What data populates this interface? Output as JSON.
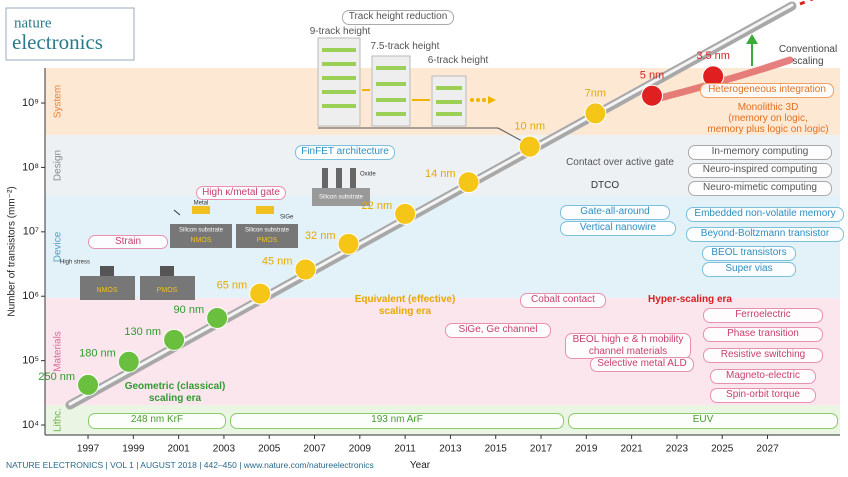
{
  "header": {
    "logo": [
      "nature",
      "electronics"
    ]
  },
  "chart_data": {
    "type": "scatter",
    "x_label": "Year",
    "y_label": "Number of transistors (mm⁻²)",
    "xlim": [
      1995.1,
      2030.2
    ],
    "xticks": [
      1997,
      1999,
      2001,
      2003,
      2005,
      2007,
      2009,
      2011,
      2013,
      2015,
      2017,
      2019,
      2021,
      2023,
      2025,
      2027
    ],
    "ylim": [
      7000,
      3500000000
    ],
    "log_y": true,
    "yticks": [
      {
        "value": 10000,
        "label": "10⁴"
      },
      {
        "value": 100000,
        "label": "10⁵"
      },
      {
        "value": 1000000,
        "label": "10⁶"
      },
      {
        "value": 10000000,
        "label": "10⁷"
      },
      {
        "value": 100000000,
        "label": "10⁸"
      },
      {
        "value": 1000000000,
        "label": "10⁹"
      }
    ],
    "series": [
      {
        "name": "Geometric (classical) scaling era",
        "color": "#6abf3e",
        "label_color": "#2f9a2f",
        "x": [
          1997,
          1998.8,
          2000.8,
          2002.7
        ],
        "values": [
          42000,
          96000,
          210000,
          460000
        ],
        "point_labels": [
          "250 nm",
          "180 nm",
          "130 nm",
          "90 nm"
        ]
      },
      {
        "name": "Equivalent (effective) scaling era",
        "color": "#f5c518",
        "label_color": "#e6a800",
        "x": [
          2004.6,
          2006.6,
          2008.5,
          2011,
          2013.8,
          2016.5,
          2019.4
        ],
        "values": [
          1100000,
          2600000,
          6500000,
          19000000,
          59000000,
          210000000,
          690000000
        ],
        "point_labels": [
          "65 nm",
          "45 nm",
          "32 nm",
          "22 nm",
          "14 nm",
          "10 nm",
          "7nm"
        ]
      },
      {
        "name": "Hyper-scaling era",
        "color": "#e02020",
        "label_color": "#d42020",
        "x": [
          2021.9,
          2024.6
        ],
        "values": [
          1300000000,
          2600000000
        ],
        "point_labels": [
          "5 nm",
          "3.5 nm"
        ]
      }
    ],
    "bands": [
      {
        "name": "System",
        "color": "#fde8d4",
        "label_color": "#e8833a"
      },
      {
        "name": "Design",
        "color": "#eef1f4",
        "label_color": "#8a8a8a"
      },
      {
        "name": "Device",
        "color": "#e3f1f8",
        "label_color": "#4fa3c7"
      },
      {
        "name": "Materials",
        "color": "#fbe6ee",
        "label_color": "#d9689a"
      },
      {
        "name": "Lithc.",
        "color": "#eaf5e4",
        "label_color": "#6cb24a"
      }
    ],
    "conventional": "Conventional scaling",
    "track": {
      "title": "Track height reduction",
      "labels": [
        "9-track height",
        "7.5-track height",
        "6-track height"
      ]
    },
    "device_images": {
      "high_k": "High κ/metal gate",
      "finfet": "FinFET architecture",
      "strain": "Strain",
      "nmos": "NMOS",
      "pmos": "PMOS",
      "substrate": "Silicon substrate",
      "oxide": "Oxide",
      "metal": "Metal",
      "sige": "SiGe",
      "high_stress": "High stress"
    },
    "system": {
      "heterogeneous": "Heterogeneous integration",
      "monolithic": [
        "Monolithic 3D",
        "(memory on logic,",
        "memory plus logic on logic)"
      ]
    },
    "design": {
      "coag": "Contact over active gate",
      "dtco": "DTCO",
      "items": [
        "In-memory computing",
        "Neuro-inspired computing",
        "Neuro-mimetic computing"
      ]
    },
    "device": {
      "gaa": "Gate-all-around",
      "vnw": "Vertical nanowire",
      "items": [
        "Embedded non-volatile memory",
        "Beyond-Boltzmann transistor",
        "BEOL transistors",
        "Super vias"
      ]
    },
    "materials": {
      "cobalt": "Cobalt contact",
      "sige": "SiGe, Ge channel",
      "beol": "BEOL high e & h mobility channel materials",
      "ald": "Selective metal ALD",
      "items": [
        "Ferroelectric",
        "Phase transition",
        "Resistive switching",
        "Magneto-electric",
        "Spin-orbit torque"
      ]
    },
    "lithography": [
      "248 nm KrF",
      "193 nm ArF",
      "EUV"
    ]
  },
  "footer": "NATURE ELECTRONICS | VOL 1 | AUGUST 2018 | 442–450 | www.nature.com/natureelectronics"
}
